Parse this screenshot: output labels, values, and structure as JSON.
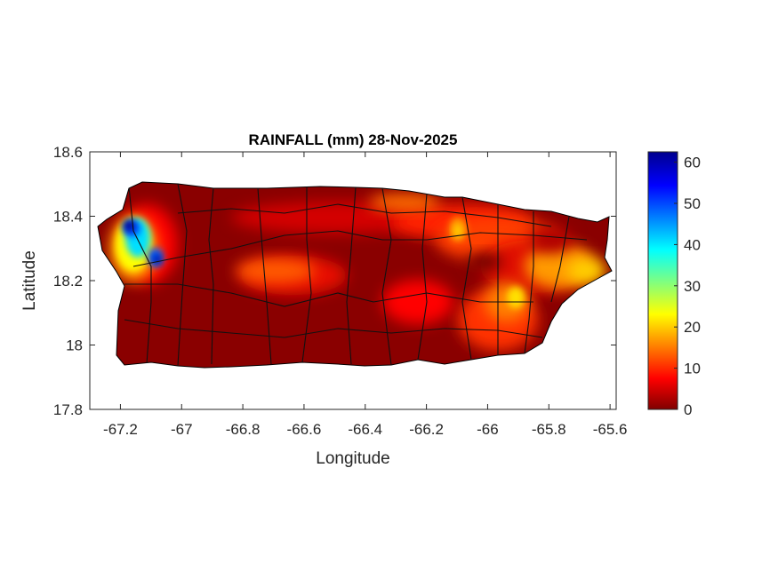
{
  "chart_data": {
    "type": "heatmap",
    "title": "RAINFALL (mm) 28-Nov-2025",
    "xlabel": "Longitude",
    "ylabel": "Latitude",
    "xlim": [
      -67.3,
      -65.58
    ],
    "ylim": [
      17.8,
      18.6
    ],
    "xticks": [
      -67.2,
      -67,
      -66.8,
      -66.6,
      -66.4,
      -66.2,
      -66,
      -65.8,
      -65.6
    ],
    "xtick_labels": [
      "-67.2",
      "-67",
      "-66.8",
      "-66.6",
      "-66.4",
      "-66.2",
      "-66",
      "-65.8",
      "-65.6"
    ],
    "yticks": [
      17.8,
      18,
      18.2,
      18.4,
      18.6
    ],
    "ytick_labels": [
      "17.8",
      "18",
      "18.2",
      "18.4",
      "18.6"
    ],
    "grid": false,
    "colormap": "jet",
    "clim": [
      0,
      62.5
    ],
    "colorbar": {
      "ticks": [
        0,
        10,
        20,
        30,
        40,
        50,
        60
      ],
      "tick_labels": [
        "0",
        "10",
        "20",
        "30",
        "40",
        "50",
        "60"
      ],
      "placement": "right"
    },
    "hotspots": [
      {
        "lon": -67.17,
        "lat": 18.37,
        "value": 60
      },
      {
        "lon": -67.09,
        "lat": 18.27,
        "value": 55
      },
      {
        "lon": -65.92,
        "lat": 18.15,
        "value": 25
      },
      {
        "lon": -66.11,
        "lat": 18.36,
        "value": 25
      },
      {
        "lon": -65.72,
        "lat": 18.25,
        "value": 20
      }
    ],
    "background_value": 0
  }
}
